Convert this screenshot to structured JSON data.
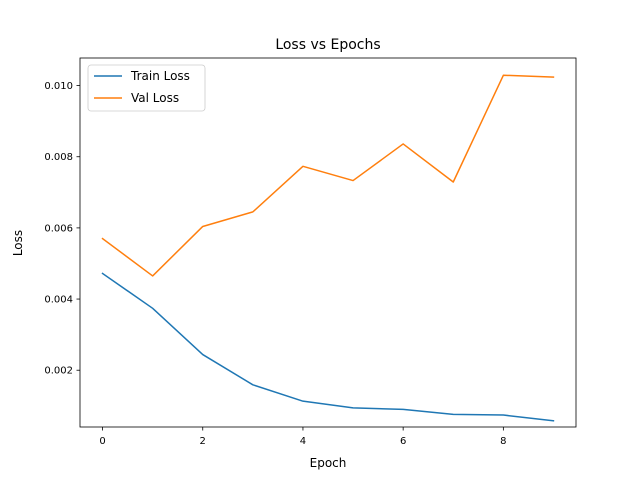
{
  "chart_data": {
    "type": "line",
    "title": "Loss vs Epochs",
    "xlabel": "Epoch",
    "ylabel": "Loss",
    "xlim": [
      -0.45,
      9.45
    ],
    "ylim": [
      0.000404,
      0.010775
    ],
    "xticks": [
      0,
      2,
      4,
      6,
      8
    ],
    "xtick_labels": [
      "0",
      "2",
      "4",
      "6",
      "8"
    ],
    "yticks": [
      0.002,
      0.004,
      0.006,
      0.008,
      0.01
    ],
    "ytick_labels": [
      "0.002",
      "0.004",
      "0.006",
      "0.008",
      "0.010"
    ],
    "grid": false,
    "legend": "top-left",
    "x": [
      0,
      1,
      2,
      3,
      4,
      5,
      6,
      7,
      8,
      9
    ],
    "series": [
      {
        "name": "Train Loss",
        "color": "#1f77b4",
        "values": [
          0.00472,
          0.00374,
          0.00244,
          0.00159,
          0.00113,
          0.00094,
          0.0009,
          0.00076,
          0.00074,
          0.00058
        ]
      },
      {
        "name": "Val Loss",
        "color": "#ff7f0e",
        "values": [
          0.0057,
          0.00465,
          0.00604,
          0.00645,
          0.00773,
          0.00733,
          0.00836,
          0.00729,
          0.01029,
          0.01024
        ]
      }
    ]
  }
}
